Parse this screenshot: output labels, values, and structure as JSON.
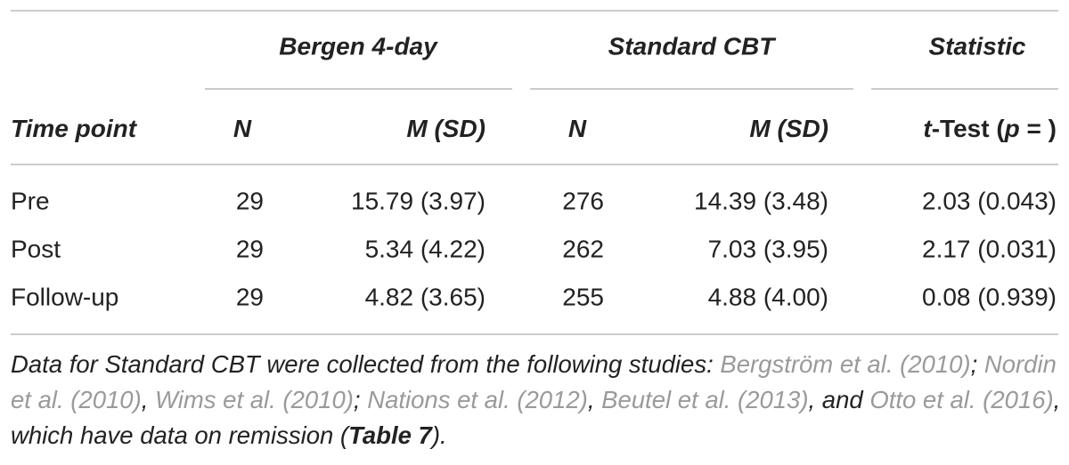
{
  "table": {
    "groups": [
      "Bergen 4-day",
      "Standard CBT",
      "Statistic"
    ],
    "columns": [
      [
        "Time point"
      ],
      [
        "N"
      ],
      [
        "M (SD)"
      ],
      [
        "N"
      ],
      [
        "M (SD)"
      ],
      [
        "t",
        "-Test (",
        "p",
        " = )"
      ]
    ],
    "rows": [
      [
        "Pre",
        "29",
        "15.79 (3.97)",
        "276",
        "14.39 (3.48)",
        "2.03 (0.043)"
      ],
      [
        "Post",
        "29",
        "5.34 (4.22)",
        "262",
        "7.03 (3.95)",
        "2.17 (0.031)"
      ],
      [
        "Follow-up",
        "29",
        "4.82 (3.65)",
        "255",
        "4.88 (4.00)",
        "0.08 (0.939)"
      ]
    ]
  },
  "footnote": [
    {
      "text": "Data for Standard CBT were collected from the following studies: "
    },
    {
      "text": "Bergström et al. (2010)",
      "link": true
    },
    {
      "text": "; "
    },
    {
      "text": "Nordin et al. (2010)",
      "link": true
    },
    {
      "text": ", "
    },
    {
      "text": "Wims et al. (2010)",
      "link": true
    },
    {
      "text": "; "
    },
    {
      "text": "Nations et al. (2012)",
      "link": true
    },
    {
      "text": ", "
    },
    {
      "text": "Beutel et al. (2013)",
      "link": true
    },
    {
      "text": ", and "
    },
    {
      "text": "Otto et al. (2016)",
      "link": true
    },
    {
      "text": ", which have data on remission ("
    },
    {
      "text": "Table 7",
      "bold": true
    },
    {
      "text": ")."
    }
  ]
}
